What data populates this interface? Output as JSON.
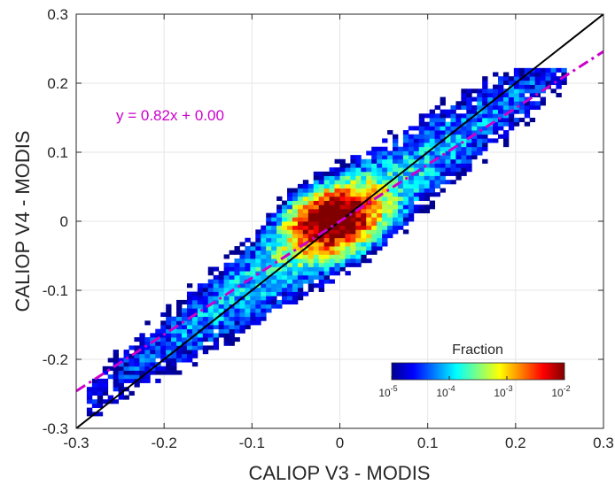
{
  "chart_data": {
    "type": "heatmap",
    "xlabel": "CALIOP V3 - MODIS",
    "ylabel": "CALIOP V4 - MODIS",
    "xlim": [
      -0.3,
      0.3
    ],
    "ylim": [
      -0.3,
      0.3
    ],
    "x_ticks": [
      -0.3,
      -0.2,
      -0.1,
      0,
      0.1,
      0.2,
      0.3
    ],
    "x_tick_labels": [
      "-0.3",
      "-0.2",
      "-0.1",
      "0",
      "0.1",
      "0.2",
      "0.3"
    ],
    "y_ticks": [
      -0.3,
      -0.2,
      -0.1,
      0,
      0.1,
      0.2,
      0.3
    ],
    "y_tick_labels": [
      "-0.3",
      "-0.2",
      "-0.1",
      "0",
      "0.1",
      "0.2",
      "0.3"
    ],
    "grid": true,
    "lines": [
      {
        "kind": "one-to-one",
        "slope": 1,
        "intercept": 0,
        "color": "#000000",
        "style": "solid"
      },
      {
        "kind": "regression",
        "slope": 0.82,
        "intercept": 0.0,
        "color": "#cc00cc",
        "style": "dash-dot"
      }
    ],
    "annotation": "y = 0.82x + 0.00",
    "colorbar": {
      "title": "Fraction",
      "scale": "log",
      "range": [
        1e-05,
        0.01
      ],
      "ticks": [
        {
          "base": "10",
          "exp": "-5"
        },
        {
          "base": "10",
          "exp": "-4"
        },
        {
          "base": "10",
          "exp": "-3"
        },
        {
          "base": "10",
          "exp": "-2"
        }
      ],
      "colormap": "jet"
    },
    "density_model": {
      "along_line_slope": 0.82,
      "core_center": [
        -0.01,
        0.0
      ],
      "peak_fraction": 0.01,
      "min_fraction": 1e-05
    }
  },
  "colors": {
    "one_to_one": "#000000",
    "regression": "#cc00cc",
    "annotation": "#cc00cc",
    "grid": "#e6e6e6",
    "axes": "#262626"
  }
}
